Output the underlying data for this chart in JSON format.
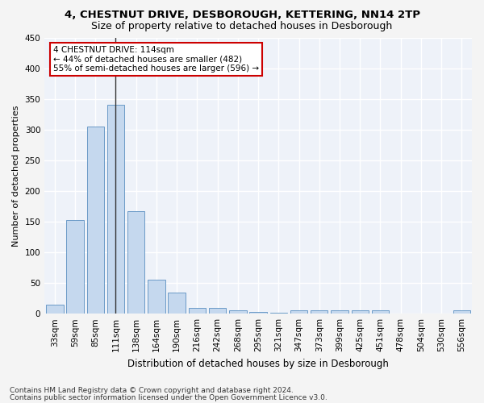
{
  "title1": "4, CHESTNUT DRIVE, DESBOROUGH, KETTERING, NN14 2TP",
  "title2": "Size of property relative to detached houses in Desborough",
  "xlabel": "Distribution of detached houses by size in Desborough",
  "ylabel": "Number of detached properties",
  "categories": [
    "33sqm",
    "59sqm",
    "85sqm",
    "111sqm",
    "138sqm",
    "164sqm",
    "190sqm",
    "216sqm",
    "242sqm",
    "268sqm",
    "295sqm",
    "321sqm",
    "347sqm",
    "373sqm",
    "399sqm",
    "425sqm",
    "451sqm",
    "478sqm",
    "504sqm",
    "530sqm",
    "556sqm"
  ],
  "values": [
    15,
    153,
    305,
    340,
    167,
    56,
    34,
    10,
    9,
    6,
    3,
    2,
    5,
    5,
    5,
    5,
    5,
    0,
    0,
    0,
    5
  ],
  "bar_color": "#c5d8ee",
  "bar_edge_color": "#5a8fc0",
  "highlight_index": 3,
  "highlight_line_color": "#333333",
  "ylim": [
    0,
    450
  ],
  "yticks": [
    0,
    50,
    100,
    150,
    200,
    250,
    300,
    350,
    400,
    450
  ],
  "annotation_line1": "4 CHESTNUT DRIVE: 114sqm",
  "annotation_line2": "← 44% of detached houses are smaller (482)",
  "annotation_line3": "55% of semi-detached houses are larger (596) →",
  "annotation_box_color": "#ffffff",
  "annotation_box_edge_color": "#cc0000",
  "footer1": "Contains HM Land Registry data © Crown copyright and database right 2024.",
  "footer2": "Contains public sector information licensed under the Open Government Licence v3.0.",
  "bg_color": "#eef2f9",
  "grid_color": "#ffffff",
  "title1_fontsize": 9.5,
  "title2_fontsize": 9,
  "xlabel_fontsize": 8.5,
  "ylabel_fontsize": 8,
  "tick_fontsize": 7.5,
  "annotation_fontsize": 7.5,
  "footer_fontsize": 6.5
}
